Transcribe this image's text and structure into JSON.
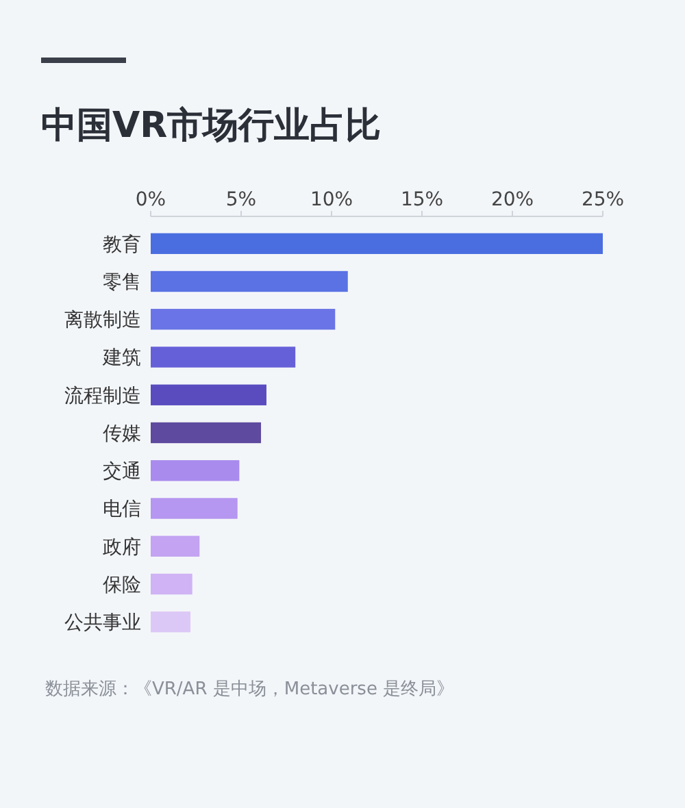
{
  "chart_data": {
    "type": "bar",
    "orientation": "horizontal",
    "title": "中国VR市场行业占比",
    "categories": [
      "教育",
      "零售",
      "离散制造",
      "建筑",
      "流程制造",
      "传媒",
      "交通",
      "电信",
      "政府",
      "保险",
      "公共事业"
    ],
    "values": [
      25.0,
      10.9,
      10.2,
      8.0,
      6.4,
      6.1,
      4.9,
      4.8,
      2.7,
      2.3,
      2.2
    ],
    "colors": [
      "#4a6ee0",
      "#5a72e3",
      "#6a74e6",
      "#6660d8",
      "#5a4cbf",
      "#5e4a9e",
      "#a98bee",
      "#b596f0",
      "#c3a3f2",
      "#cfb3f4",
      "#dcc8f6"
    ],
    "xlim": [
      0,
      25
    ],
    "xticks": [
      {
        "value": 0,
        "label": "0%"
      },
      {
        "value": 5,
        "label": "5%"
      },
      {
        "value": 10,
        "label": "10%"
      },
      {
        "value": 15,
        "label": "15%"
      },
      {
        "value": 20,
        "label": "20%"
      },
      {
        "value": 25,
        "label": "25%"
      }
    ],
    "annotations": [
      "数据来源：《VR/AR 是中场，Metaverse 是终局》"
    ]
  }
}
